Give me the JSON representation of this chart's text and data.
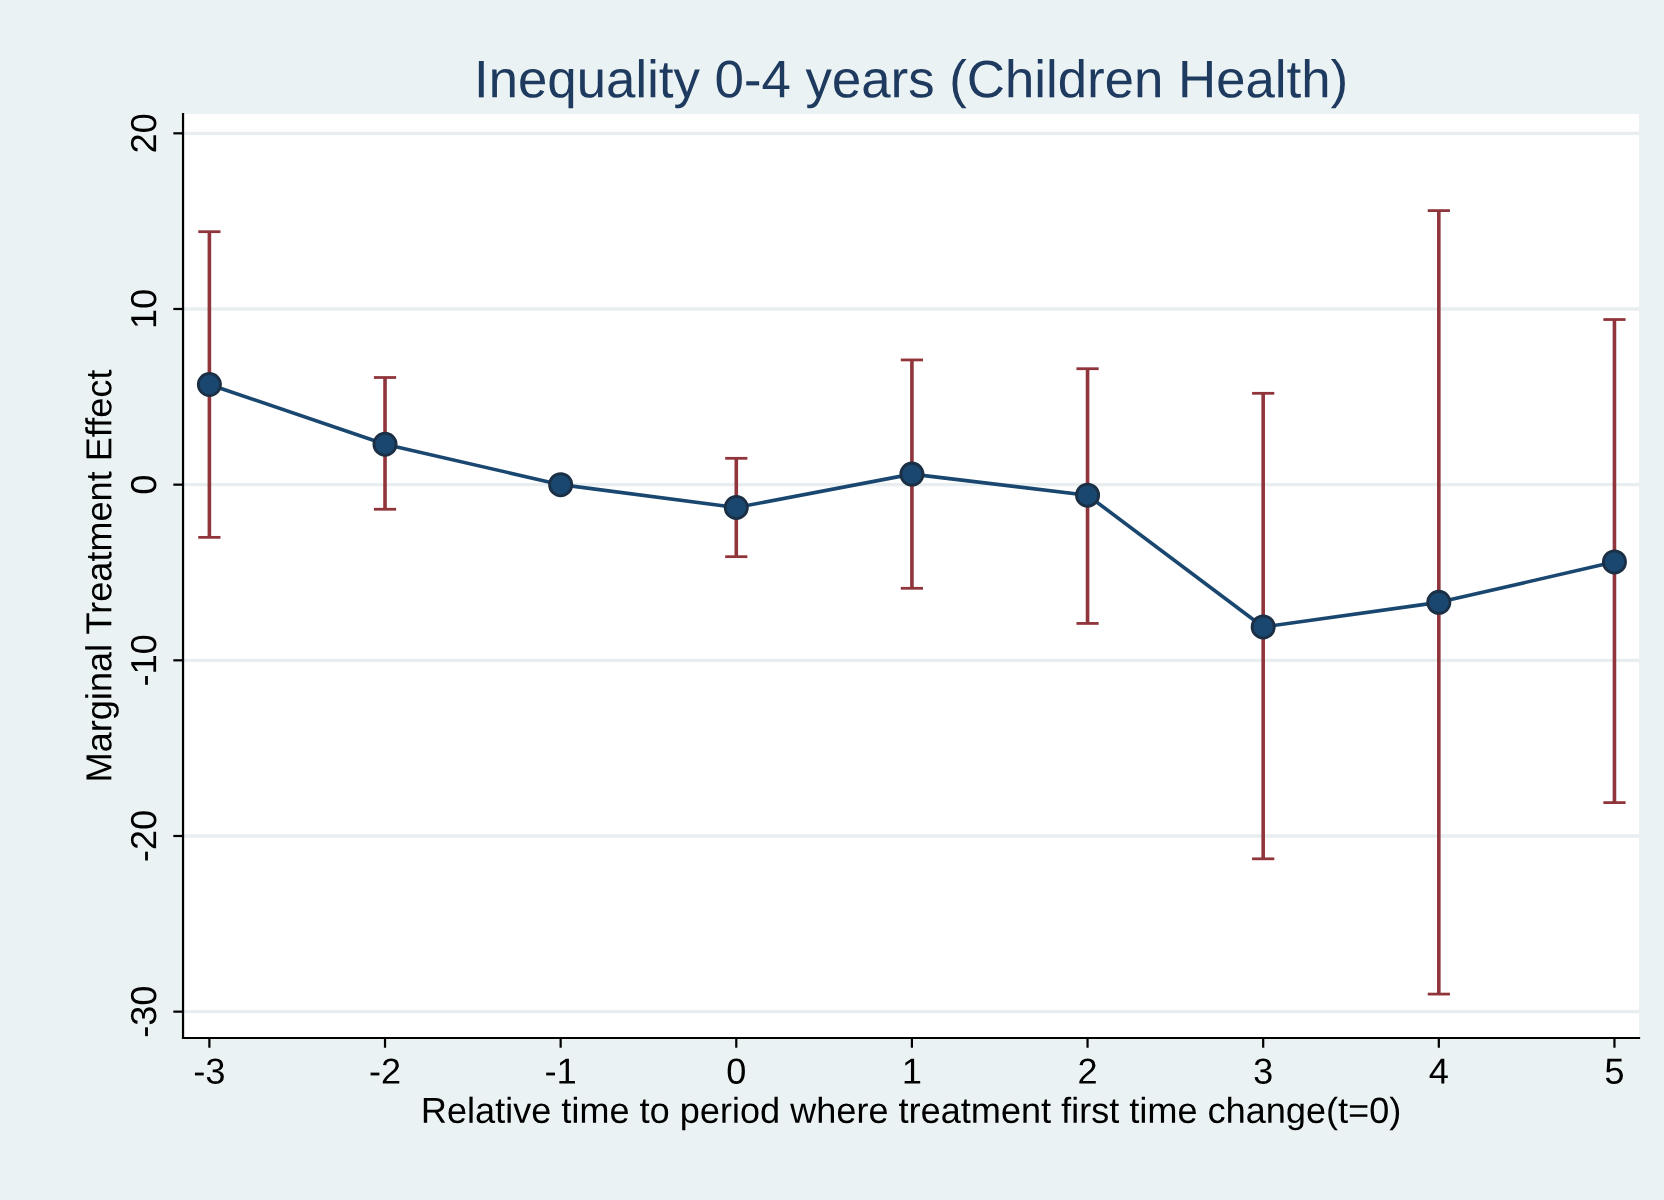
{
  "chart_data": {
    "type": "line",
    "title": "Inequality 0-4 years (Children Health)",
    "xlabel": "Relative time to period where treatment first time change(t=0)",
    "ylabel": "Marginal Treatment Effect",
    "x": [
      -3,
      -2,
      -1,
      0,
      1,
      2,
      3,
      4,
      5
    ],
    "series": [
      {
        "color": "#1a476f",
        "values": [
          5.7,
          2.3,
          0.0,
          -1.3,
          0.6,
          -0.6,
          -8.1,
          -6.7,
          -4.4
        ],
        "errors": [
          [
            -3.0,
            14.4
          ],
          [
            -1.4,
            6.1
          ],
          null,
          [
            -4.1,
            1.5
          ],
          [
            -5.9,
            7.1
          ],
          [
            -7.9,
            6.6
          ],
          [
            -21.3,
            5.2
          ],
          [
            -29.0,
            15.6
          ],
          [
            -18.1,
            9.4
          ]
        ]
      }
    ],
    "xlim": [
      -3.15,
      5.14
    ],
    "ylim": [
      -31.5,
      21.1
    ],
    "xticks": [
      -3,
      -2,
      -1,
      0,
      1,
      2,
      3,
      4,
      5
    ],
    "yticks": [
      -30,
      -20,
      -10,
      0,
      10,
      20
    ],
    "grid": "y",
    "marker": "circle",
    "line_style": "solid"
  }
}
